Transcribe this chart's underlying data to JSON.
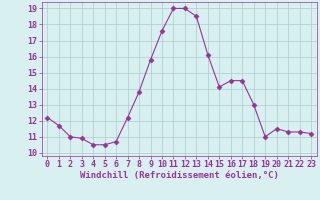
{
  "x": [
    0,
    1,
    2,
    3,
    4,
    5,
    6,
    7,
    8,
    9,
    10,
    11,
    12,
    13,
    14,
    15,
    16,
    17,
    18,
    19,
    20,
    21,
    22,
    23
  ],
  "y": [
    12.2,
    11.7,
    11.0,
    10.9,
    10.5,
    10.5,
    10.7,
    12.2,
    13.8,
    15.8,
    17.6,
    19.0,
    19.0,
    18.5,
    16.1,
    14.1,
    14.5,
    14.5,
    13.0,
    11.0,
    11.5,
    11.3,
    11.3,
    11.2
  ],
  "line_color": "#993399",
  "marker": "D",
  "marker_size": 2.5,
  "bg_color": "#d8f0f0",
  "grid_color": "#aacccc",
  "xlabel": "Windchill (Refroidissement éolien,°C)",
  "xlabel_fontsize": 6.5,
  "tick_fontsize": 6,
  "ylim": [
    9.8,
    19.4
  ],
  "yticks": [
    10,
    11,
    12,
    13,
    14,
    15,
    16,
    17,
    18,
    19
  ],
  "xlim": [
    -0.5,
    23.5
  ],
  "xticks": [
    0,
    1,
    2,
    3,
    4,
    5,
    6,
    7,
    8,
    9,
    10,
    11,
    12,
    13,
    14,
    15,
    16,
    17,
    18,
    19,
    20,
    21,
    22,
    23
  ]
}
